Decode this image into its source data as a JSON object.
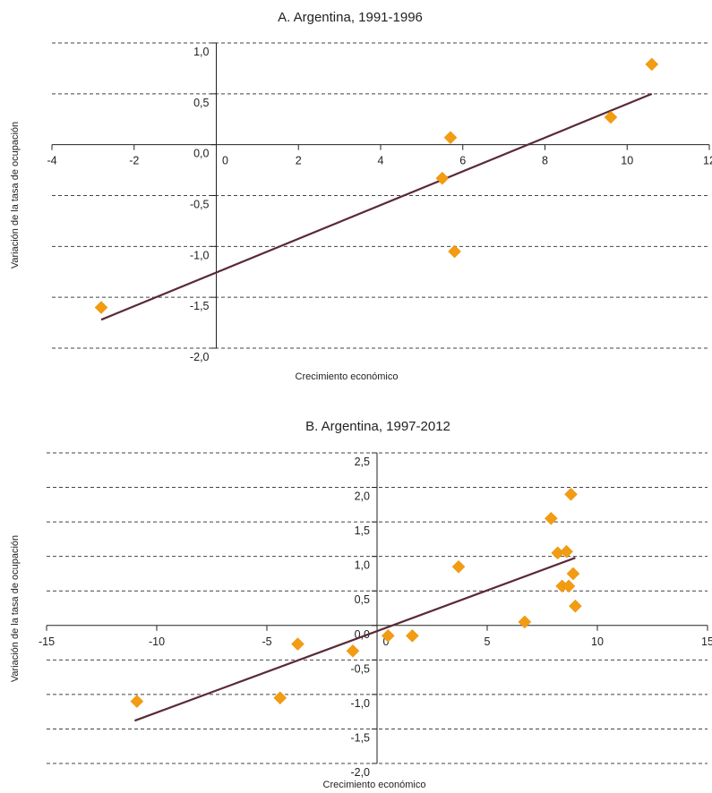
{
  "chart_data": [
    {
      "type": "scatter",
      "title": "A. Argentina, 1991-1996",
      "xlabel": "Crecimiento económico",
      "ylabel": "Variación de la tasa de ocupación",
      "xlim": [
        -4,
        12
      ],
      "ylim": [
        -2.0,
        1.0
      ],
      "xticks": [
        "-4",
        "-2",
        "0",
        "2",
        "4",
        "6",
        "8",
        "10",
        "12"
      ],
      "yticks": [
        "1,0",
        "0,5",
        "0,0",
        "-0,5",
        "-1,0",
        "-1,5",
        "-2,0"
      ],
      "gridlines": [
        1.0,
        0.5,
        0.0,
        -0.5,
        -1.0,
        -1.5,
        -2.0
      ],
      "points": [
        {
          "x": -2.8,
          "y": -1.6
        },
        {
          "x": 5.5,
          "y": -0.33
        },
        {
          "x": 5.7,
          "y": 0.07
        },
        {
          "x": 5.8,
          "y": -1.05
        },
        {
          "x": 9.6,
          "y": 0.27
        },
        {
          "x": 10.6,
          "y": 0.79
        }
      ],
      "trendline": {
        "x": [
          -2.8,
          10.6
        ],
        "y": [
          -1.72,
          0.5
        ]
      },
      "grid": true,
      "legend": "none"
    },
    {
      "type": "scatter",
      "title": "B. Argentina, 1997-2012",
      "xlabel": "Crecimiento económico",
      "ylabel": "Variación de la tasa de ocupación",
      "xlim": [
        -15,
        15
      ],
      "ylim": [
        -2.0,
        2.5
      ],
      "xticks": [
        "-15",
        "-10",
        "-5",
        "0",
        "5",
        "10",
        "15"
      ],
      "yticks": [
        "2,5",
        "2,0",
        "1,5",
        "1,0",
        "0,5",
        "0,0",
        "-0,5",
        "-1,0",
        "-1,5",
        "-2,0"
      ],
      "gridlines": [
        2.5,
        2.0,
        1.5,
        1.0,
        0.5,
        0.0,
        -0.5,
        -1.0,
        -1.5,
        -2.0
      ],
      "points": [
        {
          "x": -10.9,
          "y": -1.1
        },
        {
          "x": -4.4,
          "y": -1.05
        },
        {
          "x": -3.6,
          "y": -0.27
        },
        {
          "x": -1.1,
          "y": -0.37
        },
        {
          "x": 0.5,
          "y": -0.15
        },
        {
          "x": 1.6,
          "y": -0.15
        },
        {
          "x": 3.7,
          "y": 0.85
        },
        {
          "x": 6.7,
          "y": 0.05
        },
        {
          "x": 7.9,
          "y": 1.55
        },
        {
          "x": 8.2,
          "y": 1.05
        },
        {
          "x": 8.4,
          "y": 0.57
        },
        {
          "x": 8.6,
          "y": 1.07
        },
        {
          "x": 8.7,
          "y": 0.57
        },
        {
          "x": 8.8,
          "y": 1.9
        },
        {
          "x": 8.9,
          "y": 0.75
        },
        {
          "x": 9.0,
          "y": 0.28
        }
      ],
      "trendline": {
        "x": [
          -11.0,
          9.0
        ],
        "y": [
          -1.38,
          0.98
        ]
      },
      "grid": true,
      "legend": "none"
    }
  ]
}
